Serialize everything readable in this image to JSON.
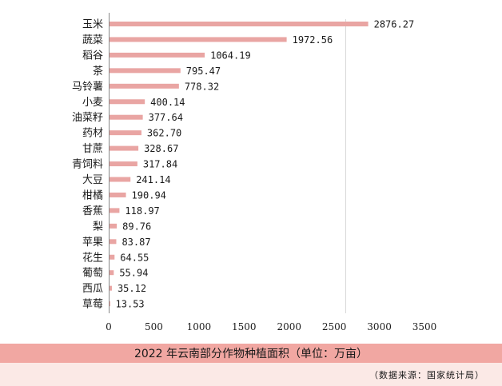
{
  "chart_data": {
    "type": "bar",
    "orientation": "horizontal",
    "title": "2022 年云南部分作物种植面积（单位：万亩）",
    "categories": [
      "玉米",
      "蔬菜",
      "稻谷",
      "茶",
      "马铃薯",
      "小麦",
      "油菜籽",
      "药材",
      "甘蔗",
      "青饲料",
      "大豆",
      "柑橘",
      "香蕉",
      "梨",
      "苹果",
      "花生",
      "葡萄",
      "西瓜",
      "草莓"
    ],
    "values": [
      2876.27,
      1972.56,
      1064.19,
      795.47,
      778.32,
      400.14,
      377.64,
      362.7,
      328.67,
      317.84,
      241.14,
      190.94,
      118.97,
      89.76,
      83.87,
      64.55,
      55.94,
      35.12,
      13.53
    ],
    "value_labels": [
      "2876.27",
      "1972.56",
      "1064.19",
      "795.47",
      "778.32",
      "400.14",
      "377.64",
      "362.70",
      "328.67",
      "317.84",
      "241.14",
      "190.94",
      "118.97",
      "89.76",
      "83.87",
      "64.55",
      "55.94",
      "35.12",
      "13.53"
    ],
    "xlim": [
      0,
      3500
    ],
    "x_ticks": [
      "0",
      "500",
      "1000",
      "1500",
      "2000",
      "2500",
      "3000",
      "3500"
    ],
    "bar_color": "#e9a5a3",
    "grid": false
  },
  "source": "（数据来源：国家统计局）",
  "colors": {
    "caption_band": "#f1a7a2",
    "source_band": "#fbe9e6"
  }
}
